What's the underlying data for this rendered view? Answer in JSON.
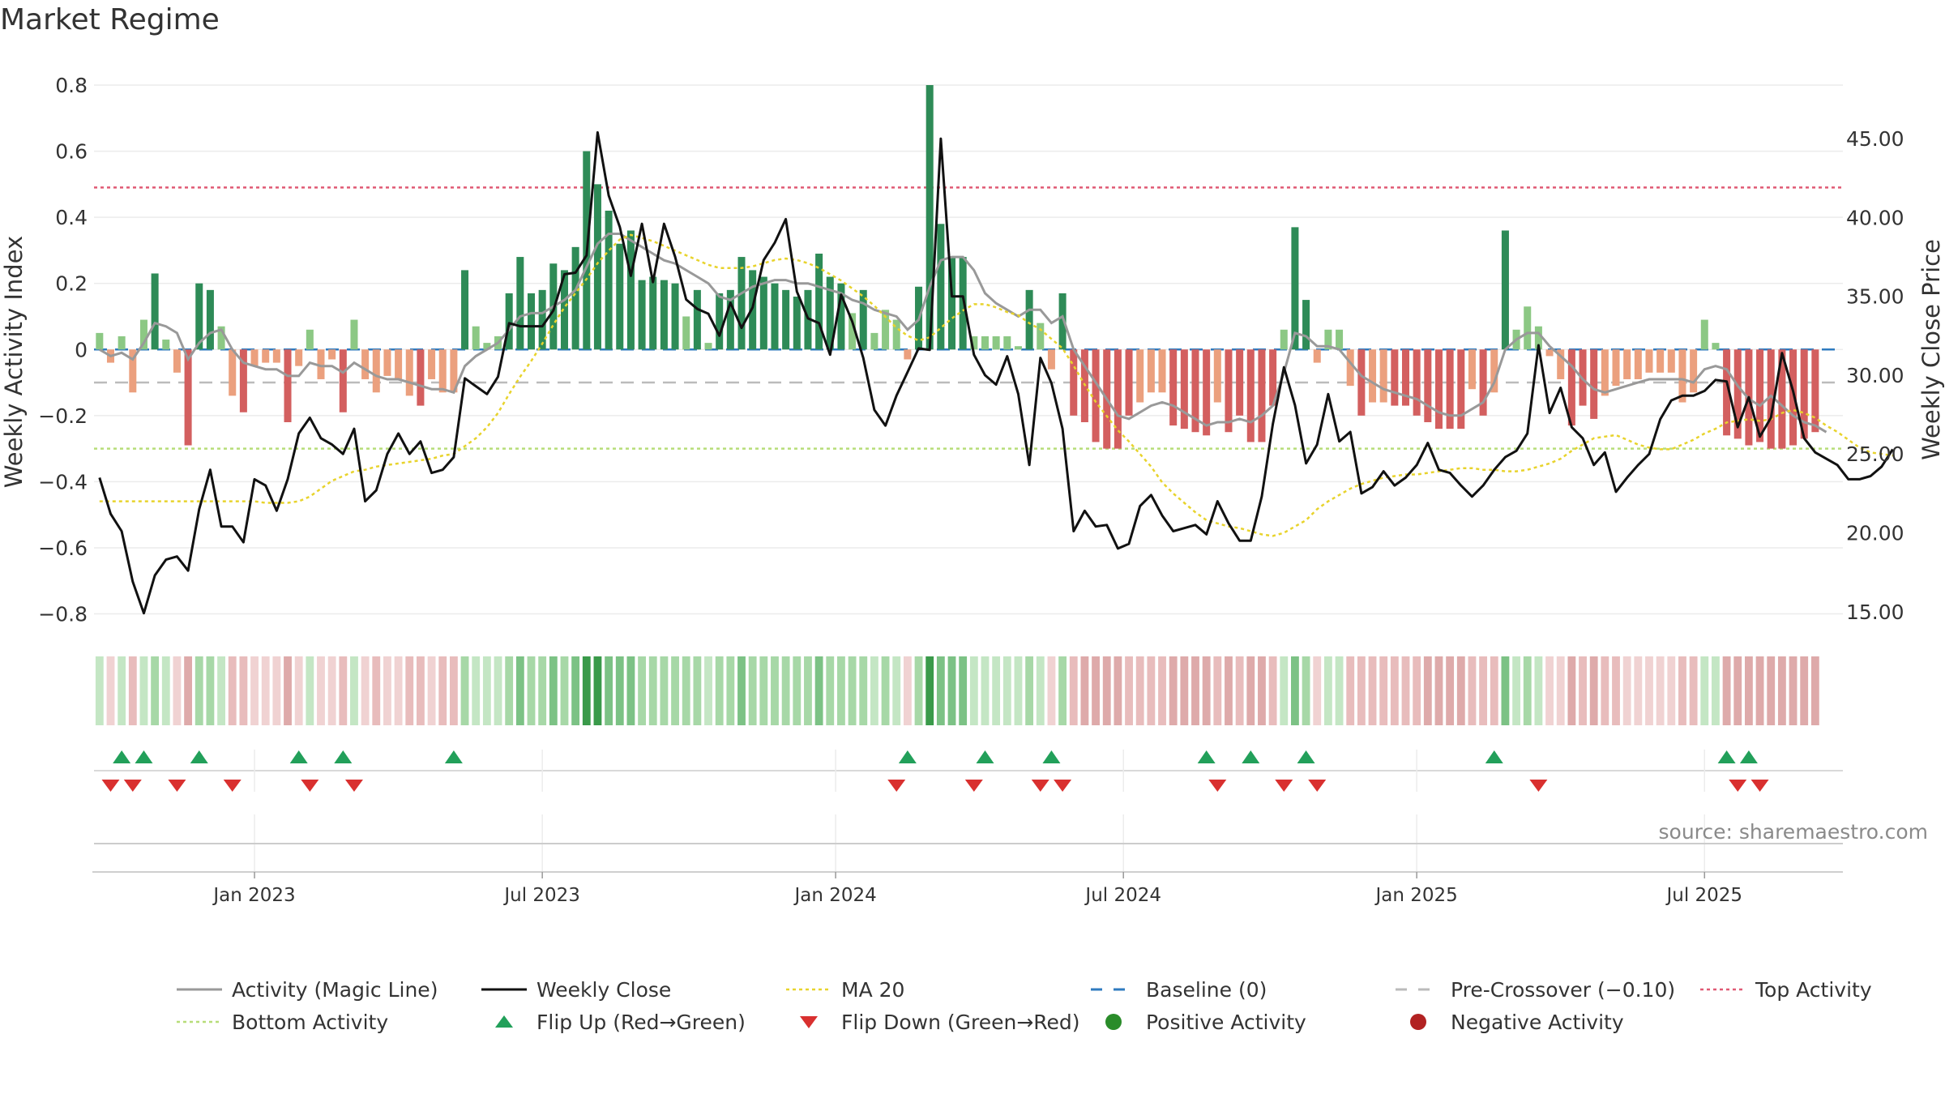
{
  "title": "Market Regime",
  "source": "source: sharemaestro.com",
  "colors": {
    "pos_strong": "#2e8b57",
    "pos_weak": "#8cc884",
    "neg_strong": "#d35f5f",
    "neg_weak": "#eba07e",
    "magic": "#999999",
    "close": "#111111",
    "ma20": "#e8d32c",
    "baseline": "#2f7bbf",
    "pre": "#bbbbbb",
    "top": "#e05a75",
    "bottom": "#b7dd79",
    "flip_up": "#22a05a",
    "flip_down": "#d9302f",
    "pos_dot": "#2a8c2a",
    "neg_dot": "#b22222"
  },
  "chart_data": {
    "type": "bar+line",
    "title": "Market Regime",
    "ylabel_left": "Weekly Activity Index",
    "ylabel_right": "Weekly Close Price",
    "ylim_left": [
      -0.86,
      0.8
    ],
    "ylim_right": [
      13.6,
      48.4
    ],
    "yticks_left": [
      0.8,
      0.6,
      0.4,
      0.2,
      0,
      -0.2,
      -0.4,
      -0.6,
      -0.8
    ],
    "yticks_left_labels": [
      "0.8",
      "0.6",
      "0.4",
      "0.2",
      "0",
      "−0.2",
      "−0.4",
      "−0.6",
      "−0.8"
    ],
    "yticks_right": [
      45,
      40,
      35,
      30,
      25,
      20,
      15
    ],
    "yticks_right_labels": [
      "45.00",
      "40.00",
      "35.00",
      "30.00",
      "25.00",
      "20.00",
      "15.00"
    ],
    "x_weeks": 158,
    "xticks": [
      {
        "week": 14.5,
        "label": "Jan 2023"
      },
      {
        "week": 40.5,
        "label": "Jul 2023"
      },
      {
        "week": 67,
        "label": "Jan 2024"
      },
      {
        "week": 93,
        "label": "Jul 2024"
      },
      {
        "week": 119.5,
        "label": "Jan 2025"
      },
      {
        "week": 145.5,
        "label": "Jul 2025"
      }
    ],
    "thresholds": {
      "top": 0.49,
      "bottom": -0.3,
      "pre_crossover": -0.1,
      "baseline": 0
    },
    "activity": [
      0.05,
      -0.04,
      0.04,
      -0.13,
      0.09,
      0.23,
      0.03,
      -0.07,
      -0.29,
      0.2,
      0.18,
      0.07,
      -0.14,
      -0.19,
      -0.05,
      -0.04,
      -0.04,
      -0.22,
      -0.05,
      0.06,
      -0.09,
      -0.03,
      -0.19,
      0.09,
      -0.09,
      -0.13,
      -0.08,
      -0.09,
      -0.14,
      -0.17,
      -0.09,
      -0.13,
      -0.13,
      0.24,
      0.07,
      0.02,
      0.04,
      0.17,
      0.28,
      0.17,
      0.18,
      0.26,
      0.24,
      0.31,
      0.6,
      0.5,
      0.42,
      0.32,
      0.36,
      0.21,
      0.22,
      0.21,
      0.2,
      0.1,
      0.18,
      0.02,
      0.17,
      0.18,
      0.28,
      0.24,
      0.22,
      0.2,
      0.18,
      0.16,
      0.18,
      0.29,
      0.22,
      0.2,
      0.11,
      0.18,
      0.05,
      0.12,
      0.09,
      -0.03,
      0.19,
      0.8,
      0.38,
      0.28,
      0.28,
      0.04,
      0.04,
      0.04,
      0.04,
      0.01,
      0.18,
      0.08,
      -0.06,
      0.17,
      -0.2,
      -0.22,
      -0.28,
      -0.3,
      -0.3,
      -0.2,
      -0.16,
      -0.13,
      -0.13,
      -0.23,
      -0.24,
      -0.25,
      -0.26,
      -0.16,
      -0.25,
      -0.2,
      -0.28,
      -0.28,
      -0.17,
      0.06,
      0.37,
      0.15,
      -0.04,
      0.06,
      0.06,
      -0.11,
      -0.2,
      -0.16,
      -0.16,
      -0.17,
      -0.17,
      -0.2,
      -0.22,
      -0.24,
      -0.24,
      -0.24,
      -0.12,
      -0.2,
      -0.13,
      0.36,
      0.06,
      0.13,
      0.07,
      -0.02,
      -0.09,
      -0.23,
      -0.17,
      -0.21,
      -0.14,
      -0.11,
      -0.09,
      -0.09,
      -0.07,
      -0.07,
      -0.07,
      -0.16,
      -0.13,
      0.09,
      0.02,
      -0.26,
      -0.27,
      -0.29,
      -0.28,
      -0.3,
      -0.3,
      -0.29,
      -0.27,
      -0.25
    ],
    "magic_line": [
      0.0,
      -0.02,
      -0.01,
      -0.03,
      0.02,
      0.08,
      0.07,
      0.05,
      -0.03,
      0.02,
      0.05,
      0.06,
      0.0,
      -0.04,
      -0.05,
      -0.06,
      -0.06,
      -0.08,
      -0.08,
      -0.04,
      -0.05,
      -0.05,
      -0.07,
      -0.04,
      -0.06,
      -0.08,
      -0.09,
      -0.09,
      -0.1,
      -0.11,
      -0.12,
      -0.12,
      -0.13,
      -0.05,
      -0.02,
      0.0,
      0.02,
      0.06,
      0.1,
      0.11,
      0.11,
      0.13,
      0.15,
      0.18,
      0.25,
      0.32,
      0.35,
      0.35,
      0.33,
      0.31,
      0.29,
      0.27,
      0.26,
      0.24,
      0.22,
      0.2,
      0.16,
      0.15,
      0.17,
      0.19,
      0.2,
      0.21,
      0.21,
      0.2,
      0.2,
      0.19,
      0.18,
      0.17,
      0.15,
      0.14,
      0.12,
      0.11,
      0.1,
      0.06,
      0.09,
      0.19,
      0.27,
      0.28,
      0.28,
      0.24,
      0.17,
      0.14,
      0.12,
      0.1,
      0.12,
      0.12,
      0.08,
      0.1,
      0.0,
      -0.05,
      -0.1,
      -0.15,
      -0.2,
      -0.21,
      -0.19,
      -0.17,
      -0.16,
      -0.17,
      -0.19,
      -0.21,
      -0.23,
      -0.22,
      -0.22,
      -0.21,
      -0.22,
      -0.2,
      -0.17,
      -0.07,
      0.05,
      0.04,
      0.01,
      0.01,
      0.0,
      -0.04,
      -0.08,
      -0.1,
      -0.12,
      -0.13,
      -0.14,
      -0.15,
      -0.17,
      -0.19,
      -0.2,
      -0.2,
      -0.18,
      -0.16,
      -0.1,
      0.0,
      0.03,
      0.05,
      0.05,
      0.01,
      -0.02,
      -0.05,
      -0.09,
      -0.12,
      -0.13,
      -0.12,
      -0.11,
      -0.1,
      -0.09,
      -0.09,
      -0.09,
      -0.09,
      -0.1,
      -0.06,
      -0.05,
      -0.06,
      -0.11,
      -0.15,
      -0.17,
      -0.14,
      -0.17,
      -0.2,
      -0.22,
      -0.23,
      -0.25
    ],
    "weekly_close": [
      23.5,
      21.2,
      20.1,
      16.9,
      14.9,
      17.3,
      18.3,
      18.5,
      17.6,
      21.5,
      24.0,
      20.4,
      20.4,
      19.4,
      23.4,
      23.0,
      21.4,
      23.4,
      26.3,
      27.3,
      26.0,
      25.6,
      25.0,
      26.6,
      22.0,
      22.7,
      25.0,
      26.3,
      25.0,
      25.8,
      23.8,
      24.0,
      24.8,
      29.8,
      29.3,
      28.8,
      29.9,
      33.3,
      33.1,
      33.1,
      33.1,
      34.1,
      36.4,
      36.5,
      37.6,
      45.4,
      41.4,
      39.4,
      36.3,
      39.6,
      35.9,
      39.6,
      37.5,
      34.8,
      34.2,
      33.9,
      32.5,
      34.6,
      33.0,
      34.3,
      37.3,
      38.4,
      39.9,
      35.3,
      33.6,
      33.3,
      31.3,
      35.1,
      33.4,
      31.1,
      27.8,
      26.8,
      28.7,
      30.2,
      31.7,
      31.6,
      45.0,
      35.0,
      35.0,
      31.3,
      30.0,
      29.4,
      31.2,
      28.8,
      24.3,
      31.1,
      29.5,
      26.6,
      20.1,
      21.4,
      20.4,
      20.5,
      19.0,
      19.3,
      21.7,
      22.4,
      21.1,
      20.1,
      20.3,
      20.5,
      19.9,
      22.0,
      20.6,
      19.5,
      19.5,
      22.3,
      26.9,
      30.5,
      28.1,
      24.4,
      25.6,
      28.8,
      25.8,
      26.4,
      22.5,
      22.9,
      23.9,
      23.0,
      23.5,
      24.3,
      25.7,
      24.0,
      23.8,
      23.0,
      22.3,
      23.0,
      24.0,
      24.8,
      25.2,
      26.3,
      31.9,
      27.6,
      29.2,
      26.7,
      26.0,
      24.3,
      25.1,
      22.6,
      23.5,
      24.3,
      25.0,
      27.2,
      28.4,
      28.7,
      28.7,
      29.0,
      29.7,
      29.6,
      26.7,
      28.6,
      26.1,
      27.3,
      31.4,
      29.0,
      26.0,
      25.1,
      24.7,
      24.3,
      23.4,
      23.4,
      23.6,
      24.2,
      25.3
    ],
    "ma20": [
      22.0,
      22.0,
      22.0,
      22.0,
      22.0,
      22.0,
      22.0,
      22.0,
      22.0,
      22.0,
      22.0,
      22.0,
      22.0,
      22.0,
      22.0,
      21.9,
      21.9,
      21.9,
      22.0,
      22.3,
      22.8,
      23.3,
      23.6,
      23.9,
      24.0,
      24.2,
      24.3,
      24.4,
      24.5,
      24.6,
      24.7,
      24.9,
      25.0,
      25.5,
      26.0,
      26.7,
      27.6,
      28.8,
      29.9,
      30.9,
      32.0,
      33.2,
      34.3,
      35.2,
      36.1,
      37.1,
      37.9,
      38.6,
      38.9,
      38.7,
      38.5,
      38.2,
      37.9,
      37.6,
      37.3,
      37.0,
      36.8,
      36.8,
      36.8,
      36.9,
      37.1,
      37.3,
      37.4,
      37.3,
      37.1,
      36.8,
      36.4,
      36.0,
      35.5,
      35.0,
      34.4,
      33.7,
      33.0,
      32.5,
      32.2,
      32.4,
      33.0,
      33.6,
      34.1,
      34.5,
      34.5,
      34.3,
      34.0,
      33.8,
      33.3,
      32.9,
      32.3,
      31.7,
      30.6,
      29.4,
      28.3,
      27.4,
      26.5,
      25.8,
      25.0,
      24.2,
      23.2,
      22.5,
      21.9,
      21.3,
      20.8,
      20.6,
      20.4,
      20.3,
      20.1,
      19.9,
      19.8,
      20.0,
      20.4,
      20.8,
      21.5,
      22.0,
      22.4,
      22.8,
      23.1,
      23.3,
      23.5,
      23.6,
      23.7,
      23.7,
      23.8,
      23.9,
      24.0,
      24.1,
      24.1,
      24.0,
      24.0,
      23.9,
      23.9,
      24.0,
      24.2,
      24.4,
      24.7,
      25.2,
      25.6,
      26.0,
      26.1,
      26.2,
      25.9,
      25.6,
      25.4,
      25.3,
      25.3,
      25.6,
      25.9,
      26.3,
      26.6,
      27.0,
      27.1,
      27.2,
      27.1,
      27.2,
      27.6,
      27.8,
      27.6,
      27.3,
      26.8,
      26.4,
      25.9,
      25.4,
      25.1,
      25.0,
      24.9
    ],
    "flip_up_weeks": [
      2,
      4,
      9,
      18,
      22,
      32,
      73,
      80,
      86,
      100,
      104,
      109,
      126,
      147,
      149
    ],
    "flip_down_weeks": [
      1,
      3,
      7,
      12,
      19,
      23,
      72,
      79,
      85,
      87,
      101,
      107,
      110,
      130,
      148,
      150
    ]
  },
  "legend": [
    {
      "label": "Activity (Magic Line)",
      "icon": "solid-line",
      "color": "#999999"
    },
    {
      "label": "Weekly Close",
      "icon": "solid-line",
      "color": "#111111"
    },
    {
      "label": "MA 20",
      "icon": "dotted-line",
      "color": "#e8d32c"
    },
    {
      "label": "Baseline (0)",
      "icon": "dashed-line",
      "color": "#2f7bbf"
    },
    {
      "label": "Pre-Crossover (−0.10)",
      "icon": "dashed-line",
      "color": "#bbbbbb"
    },
    {
      "label": "Top Activity",
      "icon": "dotted-line",
      "color": "#e05a75"
    },
    {
      "label": "Bottom Activity",
      "icon": "dotted-line",
      "color": "#b7dd79"
    },
    {
      "label": "Flip Up (Red→Green)",
      "icon": "triangle-up",
      "color": "#22a05a"
    },
    {
      "label": "Flip Down (Green→Red)",
      "icon": "triangle-down",
      "color": "#d9302f"
    },
    {
      "label": "Positive Activity",
      "icon": "dot",
      "color": "#2a8c2a"
    },
    {
      "label": "Negative Activity",
      "icon": "dot",
      "color": "#b22222"
    }
  ]
}
